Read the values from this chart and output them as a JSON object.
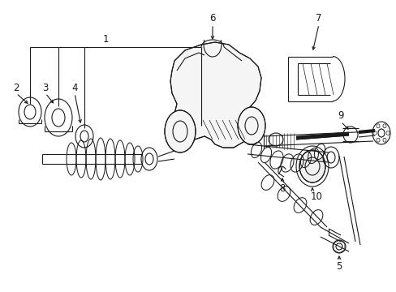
{
  "bg_color": "#ffffff",
  "line_color": "#1a1a1a",
  "fig_width": 4.89,
  "fig_height": 3.6,
  "dpi": 100,
  "font_size": 8.5,
  "line_width": 0.8
}
